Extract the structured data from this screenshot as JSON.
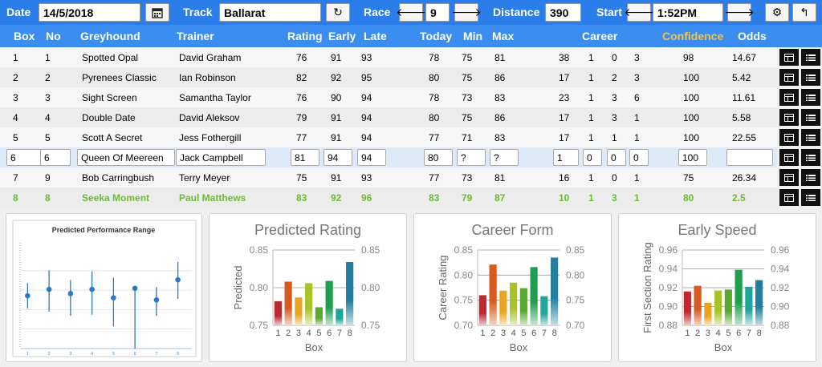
{
  "toolbar": {
    "date_label": "Date",
    "date_value": "14/5/2018",
    "track_label": "Track",
    "track_value": "Ballarat",
    "race_label": "Race",
    "race_value": "9",
    "distance_label": "Distance",
    "distance_value": "390",
    "start_label": "Start",
    "start_value": "1:52PM"
  },
  "headers": {
    "box": "Box",
    "no": "No",
    "greyhound": "Greyhound",
    "trainer": "Trainer",
    "rating": "Rating",
    "early": "Early",
    "late": "Late",
    "today": "Today",
    "min": "Min",
    "max": "Max",
    "career": "Career",
    "confidence": "Confidence",
    "odds": "Odds"
  },
  "rows": [
    {
      "box": "1",
      "no": "1",
      "dog": "Spotted Opal",
      "trainer": "David Graham",
      "rating": "76",
      "early": "91",
      "late": "93",
      "today": "78",
      "min": "75",
      "max": "81",
      "c1": "38",
      "c2": "1",
      "c3": "0",
      "c4": "3",
      "conf": "98",
      "odds": "14.67"
    },
    {
      "box": "2",
      "no": "2",
      "dog": "Pyrenees Classic",
      "trainer": "Ian Robinson",
      "rating": "82",
      "early": "92",
      "late": "95",
      "today": "80",
      "min": "75",
      "max": "86",
      "c1": "17",
      "c2": "1",
      "c3": "2",
      "c4": "3",
      "conf": "100",
      "odds": "5.42"
    },
    {
      "box": "3",
      "no": "3",
      "dog": "Sight Screen",
      "trainer": "Samantha Taylor",
      "rating": "76",
      "early": "90",
      "late": "94",
      "today": "78",
      "min": "73",
      "max": "83",
      "c1": "23",
      "c2": "1",
      "c3": "3",
      "c4": "6",
      "conf": "100",
      "odds": "11.61"
    },
    {
      "box": "4",
      "no": "4",
      "dog": "Double Date",
      "trainer": "David Aleksov",
      "rating": "79",
      "early": "91",
      "late": "94",
      "today": "80",
      "min": "75",
      "max": "86",
      "c1": "17",
      "c2": "1",
      "c3": "3",
      "c4": "1",
      "conf": "100",
      "odds": "5.58"
    },
    {
      "box": "5",
      "no": "5",
      "dog": "Scott A Secret",
      "trainer": "Jess Fothergill",
      "rating": "77",
      "early": "91",
      "late": "94",
      "today": "77",
      "min": "71",
      "max": "83",
      "c1": "17",
      "c2": "1",
      "c3": "1",
      "c4": "1",
      "conf": "100",
      "odds": "22.55"
    },
    {
      "box": "6",
      "no": "6",
      "dog": "Queen Of Meereen",
      "trainer": "Jack Campbell",
      "rating": "81",
      "early": "94",
      "late": "94",
      "today": "80",
      "min": "?",
      "max": "?",
      "c1": "1",
      "c2": "0",
      "c3": "0",
      "c4": "0",
      "conf": "100",
      "odds": ""
    },
    {
      "box": "7",
      "no": "9",
      "dog": "Bob Carringbush",
      "trainer": "Terry Meyer",
      "rating": "75",
      "early": "91",
      "late": "93",
      "today": "77",
      "min": "73",
      "max": "81",
      "c1": "16",
      "c2": "1",
      "c3": "0",
      "c4": "1",
      "conf": "75",
      "odds": "26.34"
    },
    {
      "box": "8",
      "no": "8",
      "dog": "Seeka Moment",
      "trainer": "Paul Matthews",
      "rating": "83",
      "early": "92",
      "late": "96",
      "today": "83",
      "min": "79",
      "max": "87",
      "c1": "10",
      "c2": "1",
      "c3": "3",
      "c4": "1",
      "conf": "80",
      "odds": "2.5"
    }
  ],
  "colors": {
    "toolbar_bg": "#2b7de9",
    "header_bg": "#3b8df0",
    "confidence_header": "#f6c244",
    "highlight_green": "#6bbd2e",
    "bar_colors": [
      "#c0282f",
      "#d85a1c",
      "#e8a51f",
      "#a9c229",
      "#5aa830",
      "#1f9e4f",
      "#1fa59c",
      "#237e9e"
    ]
  },
  "chart_data": [
    {
      "type": "scatter",
      "title": "Predicted Performance Range",
      "categories": [
        "1",
        "2",
        "3",
        "4",
        "5",
        "6",
        "7",
        "8"
      ],
      "values": [
        0.5,
        0.56,
        0.52,
        0.56,
        0.48,
        0.57,
        0.46,
        0.65
      ],
      "low": [
        0.38,
        0.35,
        0.31,
        0.32,
        0.21,
        0.0,
        0.31,
        0.47
      ],
      "high": [
        0.62,
        0.74,
        0.65,
        0.73,
        0.67,
        0.58,
        0.58,
        0.82
      ],
      "ylim": [
        0,
        1
      ],
      "xlabel": "",
      "ylabel": ""
    },
    {
      "type": "bar",
      "title": "Predicted Rating",
      "categories": [
        "1",
        "2",
        "3",
        "4",
        "5",
        "6",
        "7",
        "8"
      ],
      "values": [
        0.782,
        0.808,
        0.787,
        0.806,
        0.774,
        0.809,
        0.772,
        0.834
      ],
      "ylim": [
        0.75,
        0.85
      ],
      "yticks": [
        "0.75",
        "0.80",
        "0.85"
      ],
      "xlabel": "Box",
      "ylabel": "Predicted"
    },
    {
      "type": "bar",
      "title": "Career Form",
      "categories": [
        "1",
        "2",
        "3",
        "4",
        "5",
        "6",
        "7",
        "8"
      ],
      "values": [
        0.76,
        0.821,
        0.769,
        0.785,
        0.774,
        0.816,
        0.758,
        0.835
      ],
      "ylim": [
        0.7,
        0.85
      ],
      "yticks": [
        "0.70",
        "0.75",
        "0.80",
        "0.85"
      ],
      "xlabel": "Box",
      "ylabel": "Career Rating"
    },
    {
      "type": "bar",
      "title": "Early Speed",
      "categories": [
        "1",
        "2",
        "3",
        "4",
        "5",
        "6",
        "7",
        "8"
      ],
      "values": [
        0.916,
        0.922,
        0.904,
        0.917,
        0.918,
        0.939,
        0.921,
        0.928
      ],
      "ylim": [
        0.88,
        0.96
      ],
      "yticks": [
        "0.88",
        "0.90",
        "0.92",
        "0.94",
        "0.96"
      ],
      "xlabel": "Box",
      "ylabel": "First Section Rating"
    }
  ]
}
